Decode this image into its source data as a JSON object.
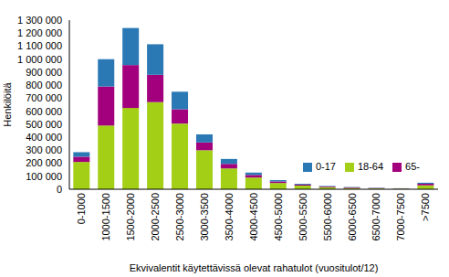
{
  "chart_data": {
    "type": "bar",
    "stacked": true,
    "x_label": "Ekvivalentit käytettävissä olevat rahatulot (vuositulot/12)",
    "y_label": "Henkilöitä",
    "categories": [
      "0-1000",
      "1000-1500",
      "1500-2000",
      "2000-2500",
      "2500-3000",
      "3000-3500",
      "3500-4000",
      "4000-4500",
      "4500-5000",
      "5000-5500",
      "5500-6000",
      "6000-6500",
      "6500-7000",
      "7000-7500",
      ">7500"
    ],
    "series": [
      {
        "name": "18-64",
        "color": "#a3cf17",
        "values": [
          210000,
          490000,
          625000,
          670000,
          505000,
          300000,
          160000,
          90000,
          48000,
          28000,
          16000,
          10000,
          6000,
          4000,
          30000
        ]
      },
      {
        "name": "65-",
        "color": "#a2007c",
        "values": [
          40000,
          300000,
          330000,
          210000,
          110000,
          60000,
          35000,
          20000,
          12000,
          8000,
          5000,
          4000,
          3000,
          2000,
          12000
        ]
      },
      {
        "name": "0-17",
        "color": "#2a79b5",
        "values": [
          35000,
          210000,
          285000,
          235000,
          135000,
          62000,
          38000,
          18000,
          10000,
          6000,
          4000,
          3000,
          2000,
          1500,
          8000
        ]
      }
    ],
    "ylim": [
      0,
      1300000
    ],
    "yticks": [
      0,
      {
        "value": 100000,
        "label": "100 000"
      },
      {
        "value": 200000,
        "label": "200 000"
      },
      {
        "value": 300000,
        "label": "300 000"
      },
      {
        "value": 400000,
        "label": "400 000"
      },
      {
        "value": 500000,
        "label": "500 000"
      },
      {
        "value": 600000,
        "label": "600 000"
      },
      {
        "value": 700000,
        "label": "700 000"
      },
      {
        "value": 800000,
        "label": "800 000"
      },
      {
        "value": 900000,
        "label": "900 000"
      },
      {
        "value": 1000000,
        "label": "1 000 000"
      },
      {
        "value": 1100000,
        "label": "1 100 000"
      },
      {
        "value": 1200000,
        "label": "1 200 000"
      },
      {
        "value": 1300000,
        "label": "1 300 000"
      }
    ],
    "grid": false,
    "legend": "right"
  }
}
